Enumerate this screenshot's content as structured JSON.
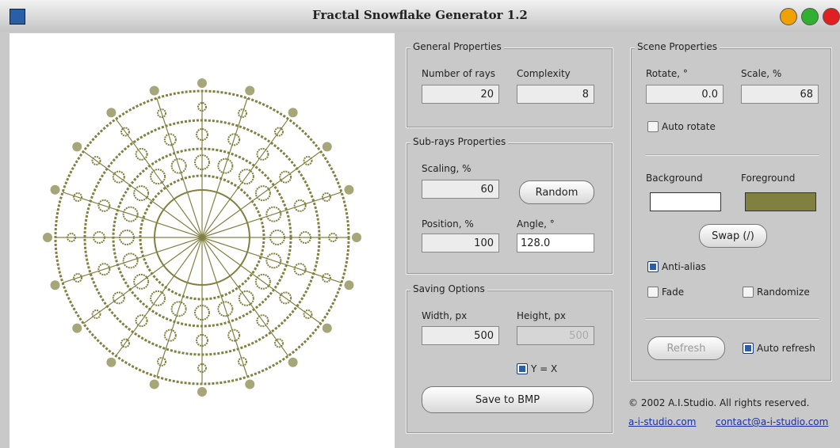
{
  "window": {
    "title": "Fractal Snowflake Generator 1.2"
  },
  "general": {
    "title": "General Properties",
    "rays_label": "Number of rays",
    "rays": 20,
    "complexity_label": "Complexity",
    "complexity": 8
  },
  "subrays": {
    "title": "Sub-rays Properties",
    "scaling_label": "Scaling, %",
    "scaling": 60,
    "random_button": "Random",
    "position_label": "Position, %",
    "position": 100,
    "angle_label": "Angle, °",
    "angle": "128.0"
  },
  "saving": {
    "title": "Saving Options",
    "width_label": "Width, px",
    "width": 500,
    "height_label": "Height, px",
    "height": 500,
    "yx_label": "Y = X",
    "yx_checked": true,
    "save_button": "Save to BMP"
  },
  "scene": {
    "title": "Scene Properties",
    "rotate_label": "Rotate, °",
    "rotate": "0.0",
    "scale_label": "Scale, %",
    "scale": 68,
    "auto_rotate_label": "Auto rotate",
    "auto_rotate_checked": false,
    "background_label": "Background",
    "background_color": "#ffffff",
    "foreground_label": "Foreground",
    "foreground_color": "#808040",
    "swap_button": "Swap (/)",
    "antialias_label": "Anti-alias",
    "antialias_checked": true,
    "fade_label": "Fade",
    "fade_checked": false,
    "randomize_label": "Randomize",
    "randomize_checked": false,
    "refresh_button": "Refresh",
    "auto_refresh_label": "Auto refresh",
    "auto_refresh_checked": true
  },
  "footer": {
    "copyright": "© 2002 A.I.Studio. All rights reserved.",
    "link1": "a-i-studio.com",
    "link2": "contact@a-i-studio.com"
  }
}
